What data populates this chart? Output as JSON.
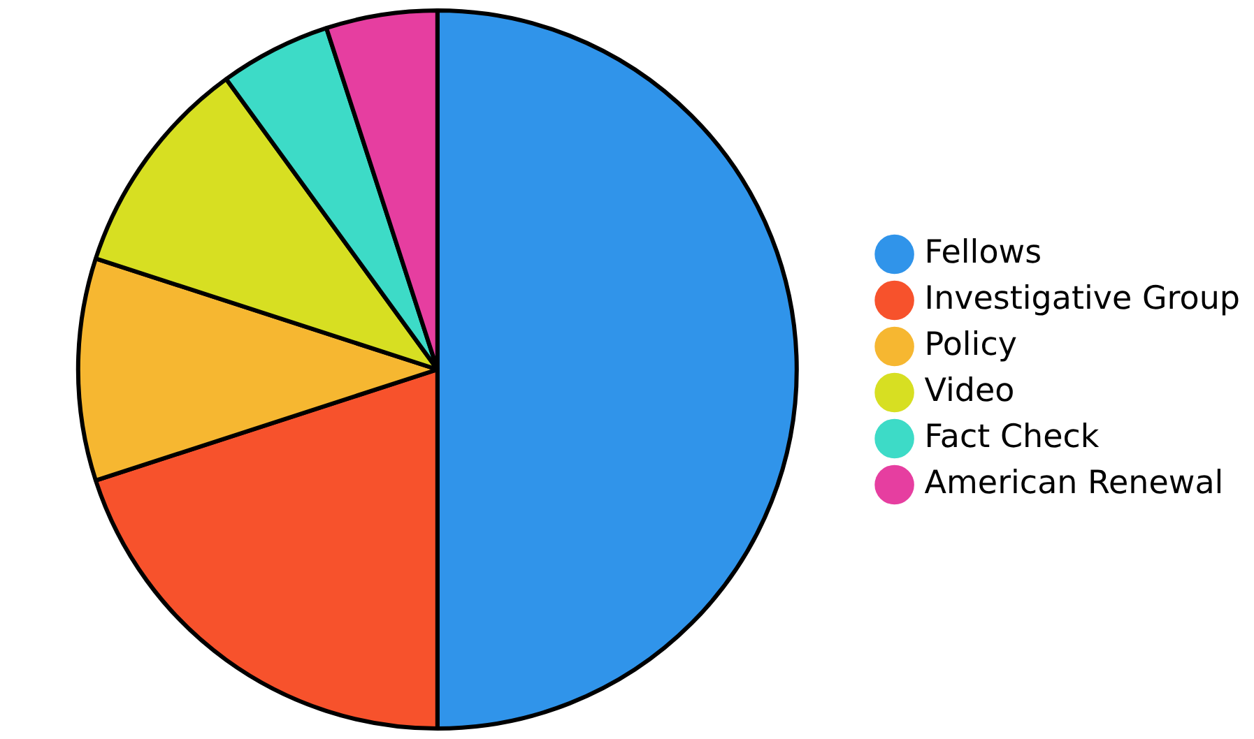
{
  "chart_data": {
    "type": "pie",
    "categories": [
      "Fellows",
      "Investigative Group",
      "Policy",
      "Video",
      "Fact Check",
      "American Renewal"
    ],
    "values": [
      50,
      20,
      10,
      10,
      5,
      5
    ],
    "colors": [
      "#3094ea",
      "#f7522c",
      "#f6b731",
      "#d7df22",
      "#3ddbc7",
      "#e63ea0"
    ],
    "legend": "right"
  }
}
